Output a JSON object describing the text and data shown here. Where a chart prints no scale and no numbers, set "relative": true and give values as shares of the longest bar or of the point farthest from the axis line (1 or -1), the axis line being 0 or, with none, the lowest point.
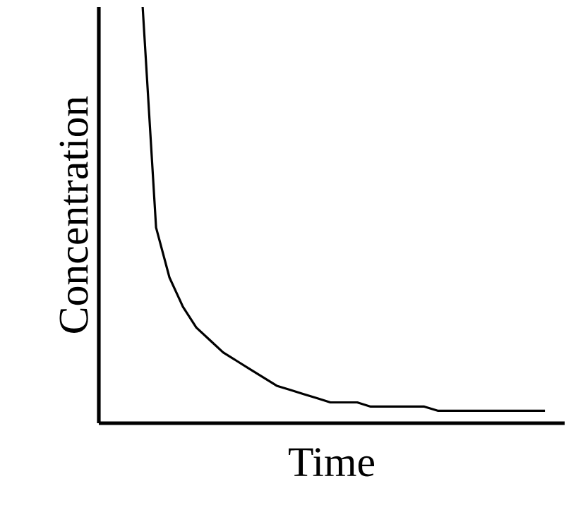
{
  "chart_data": {
    "type": "line",
    "relative": true,
    "xlabel": "Time",
    "ylabel": "Concentration",
    "categories": [
      null,
      null,
      null,
      null,
      null,
      null,
      null,
      null,
      null,
      null,
      null,
      null,
      null,
      null,
      null,
      null,
      null,
      null,
      null,
      null,
      null,
      null,
      null,
      null,
      null,
      null,
      null,
      null,
      null,
      null,
      null
    ],
    "series": [
      {
        "color": "#000000",
        "values": [
          1,
          0.47,
          0.35,
          0.28,
          0.23,
          0.2,
          0.17,
          0.15,
          0.13,
          0.11,
          0.09,
          0.08,
          0.07,
          0.06,
          0.05,
          0.05,
          0.05,
          0.04,
          0.04,
          0.04,
          0.04,
          0.04,
          0.03,
          0.03,
          0.03,
          0.03,
          0.03,
          0.03,
          0.03,
          0.03,
          0.03
        ]
      }
    ]
  }
}
